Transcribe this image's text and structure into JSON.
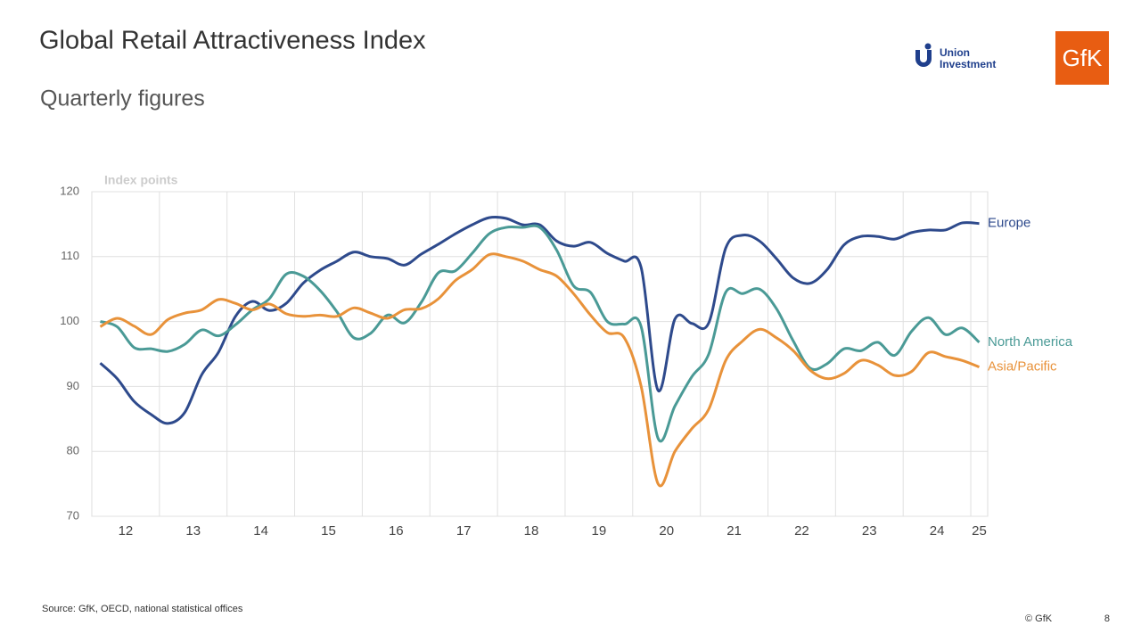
{
  "header": {
    "title": "Global Retail Attractiveness Index",
    "subtitle": "Quarterly figures"
  },
  "logos": {
    "union_line1": "Union",
    "union_line2": "Investment",
    "gfk": "GfK"
  },
  "chart_data": {
    "type": "line",
    "y_axis_label": "Index points",
    "x": [
      12.125,
      12.375,
      12.625,
      12.875,
      13.125,
      13.375,
      13.625,
      13.875,
      14.125,
      14.375,
      14.625,
      14.875,
      15.125,
      15.375,
      15.625,
      15.875,
      16.125,
      16.375,
      16.625,
      16.875,
      17.125,
      17.375,
      17.625,
      17.875,
      18.125,
      18.375,
      18.625,
      18.875,
      19.125,
      19.375,
      19.625,
      19.875,
      20.125,
      20.375,
      20.625,
      20.875,
      21.125,
      21.375,
      21.625,
      21.875,
      22.125,
      22.375,
      22.625,
      22.875,
      23.125,
      23.375,
      23.625,
      23.875,
      24.125,
      24.375,
      24.625,
      24.875,
      25.125
    ],
    "series": [
      {
        "name": "Europe",
        "color": "#2e4a8c",
        "values": [
          93.6,
          91.2,
          87.7,
          85.7,
          84.3,
          86,
          91.8,
          95.3,
          100.8,
          103.1,
          101.7,
          102.8,
          105.9,
          107.9,
          109.3,
          110.7,
          110,
          109.7,
          108.7,
          110.4,
          111.9,
          113.5,
          114.9,
          116,
          115.9,
          114.9,
          114.9,
          112.4,
          111.6,
          112.2,
          110.5,
          109.3,
          108.3,
          89.4,
          100.4,
          99.7,
          99.8,
          111.3,
          113.3,
          112.4,
          109.7,
          106.7,
          105.9,
          108,
          111.8,
          113.1,
          113.1,
          112.7,
          113.7,
          114.1,
          114.1,
          115.2,
          115.1
        ]
      },
      {
        "name": "North America",
        "color": "#4a9a96",
        "values": [
          100,
          99.2,
          96,
          95.8,
          95.4,
          96.5,
          98.7,
          97.8,
          99.5,
          101.8,
          103.5,
          107.3,
          107,
          104.8,
          101.5,
          97.5,
          98.2,
          101,
          99.8,
          103,
          107.5,
          107.8,
          110.5,
          113.5,
          114.5,
          114.5,
          114.5,
          111,
          105.5,
          104.5,
          100,
          99.6,
          99.2,
          82,
          87,
          91.5,
          95,
          104.5,
          104.3,
          105,
          102,
          97,
          92.8,
          93.5,
          95.8,
          95.5,
          96.8,
          94.8,
          98.5,
          100.6,
          98,
          99,
          96.8
        ]
      },
      {
        "name": "Asia/Pacific",
        "color": "#e8923a",
        "values": [
          99.2,
          100.5,
          99.3,
          98,
          100.3,
          101.3,
          101.8,
          103.4,
          102.8,
          101.8,
          102.7,
          101.2,
          100.8,
          101,
          100.8,
          102.1,
          101.3,
          100.5,
          101.8,
          102,
          103.5,
          106.3,
          108,
          110.3,
          110,
          109.3,
          108,
          107,
          104.3,
          101,
          98.3,
          97.5,
          90,
          75,
          80,
          83.5,
          86.5,
          94,
          97,
          98.8,
          97.5,
          95.5,
          92.5,
          91.2,
          92,
          94,
          93.3,
          91.7,
          92.3,
          95.2,
          94.6,
          94,
          93
        ]
      }
    ],
    "xlim": [
      12,
      25.25
    ],
    "xticks": [
      {
        "value": 12.5,
        "label": "12"
      },
      {
        "value": 13.5,
        "label": "13"
      },
      {
        "value": 14.5,
        "label": "14"
      },
      {
        "value": 15.5,
        "label": "15"
      },
      {
        "value": 16.5,
        "label": "16"
      },
      {
        "value": 17.5,
        "label": "17"
      },
      {
        "value": 18.5,
        "label": "18"
      },
      {
        "value": 19.5,
        "label": "19"
      },
      {
        "value": 20.5,
        "label": "20"
      },
      {
        "value": 21.5,
        "label": "21"
      },
      {
        "value": 22.5,
        "label": "22"
      },
      {
        "value": 23.5,
        "label": "23"
      },
      {
        "value": 24.5,
        "label": "24"
      },
      {
        "value": 25.125,
        "label": "25"
      }
    ],
    "xgrid": [
      13,
      14,
      15,
      16,
      17,
      18,
      19,
      20,
      21,
      22,
      23,
      24,
      25
    ],
    "ylim": [
      70,
      120
    ],
    "yticks": [
      70,
      80,
      90,
      100,
      110,
      120
    ],
    "grid": true
  },
  "footer": {
    "source": "Source: GfK, OECD, national statistical offices",
    "copyright": "© GfK",
    "page": "8"
  }
}
